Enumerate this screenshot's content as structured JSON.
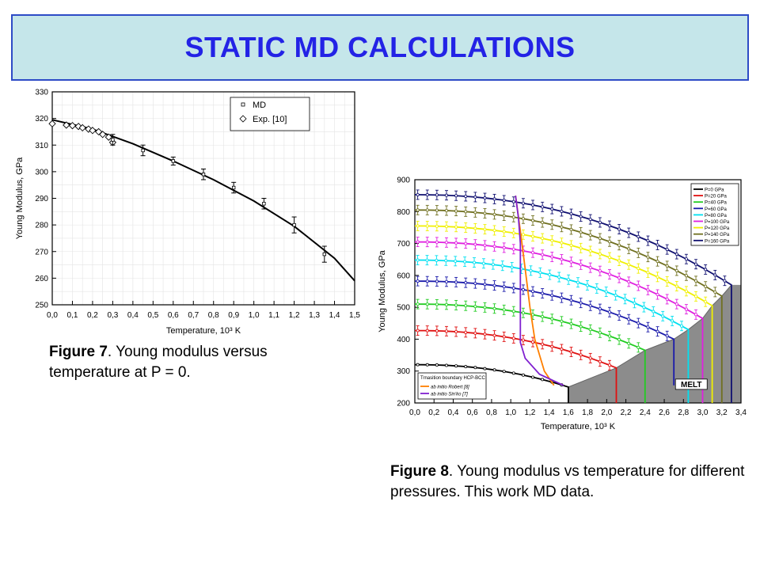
{
  "page": {
    "title": "STATIC MD CALCULATIONS",
    "title_color": "#2323e6",
    "title_bg": "#c5e6ea"
  },
  "captions": {
    "fig7_label": "Figure 7",
    "fig7_text": ". Young modulus versus temperature at P = 0.",
    "fig8_label": "Figure 8",
    "fig8_text": ". Young modulus vs temperature for different pressures. This work MD data."
  },
  "chart_data": [
    {
      "type": "line",
      "title": "",
      "xlabel": "Temperature, 10³ K",
      "ylabel": "Young Modulus, GPa",
      "xlim": [
        0.0,
        1.5
      ],
      "ylim": [
        250,
        330
      ],
      "x_ticks": [
        0.0,
        0.1,
        0.2,
        0.3,
        0.4,
        0.5,
        0.6,
        0.7,
        0.8,
        0.9,
        1.0,
        1.1,
        1.2,
        1.3,
        1.4,
        1.5
      ],
      "x_tick_labels": [
        "0,0",
        "0,1",
        "0,2",
        "0,3",
        "0,4",
        "0,5",
        "0,6",
        "0,7",
        "0,8",
        "0,9",
        "1,0",
        "1,1",
        "1,2",
        "1,3",
        "1,4",
        "1,5"
      ],
      "y_ticks": [
        250,
        260,
        270,
        280,
        290,
        300,
        310,
        320,
        330
      ],
      "grid": true,
      "legend": {
        "position": "top-right",
        "entries": [
          {
            "marker": "square",
            "label": "MD"
          },
          {
            "marker": "diamond",
            "label": "Exp. [10]"
          }
        ]
      },
      "series": [
        {
          "name": "MD",
          "x": [
            0.3,
            0.45,
            0.6,
            0.75,
            0.9,
            1.05,
            1.2,
            1.35
          ],
          "y": [
            312,
            308,
            304,
            299,
            294,
            288,
            280,
            269
          ],
          "yerr": [
            2,
            2,
            1.5,
            2,
            2,
            2,
            3,
            3
          ]
        },
        {
          "name": "Exp. [10]",
          "x": [
            0.0,
            0.07,
            0.1,
            0.13,
            0.15,
            0.18,
            0.2,
            0.23,
            0.25,
            0.28,
            0.3
          ],
          "y": [
            318,
            317.5,
            317.3,
            317,
            316.5,
            316,
            315.5,
            315,
            314,
            313,
            311
          ]
        },
        {
          "name": "fit",
          "x": [
            0.0,
            0.2,
            0.4,
            0.6,
            0.8,
            1.0,
            1.2,
            1.4,
            1.5
          ],
          "y": [
            319.5,
            316,
            310.5,
            304,
            297,
            289,
            279.5,
            267.5,
            259
          ]
        }
      ]
    },
    {
      "type": "line",
      "title": "",
      "xlabel": "Temperature, 10³ K",
      "ylabel": "Young Modulus, GPa",
      "xlim": [
        0.0,
        3.4
      ],
      "ylim": [
        200,
        900
      ],
      "x_ticks": [
        0.0,
        0.2,
        0.4,
        0.6,
        0.8,
        1.0,
        1.2,
        1.4,
        1.6,
        1.8,
        2.0,
        2.2,
        2.4,
        2.6,
        2.8,
        3.0,
        3.2,
        3.4
      ],
      "x_tick_labels": [
        "0,0",
        "0,2",
        "0,4",
        "0,6",
        "0,8",
        "1,0",
        "1,2",
        "1,4",
        "1,6",
        "1,8",
        "2,0",
        "2,2",
        "2,4",
        "2,6",
        "2,8",
        "3,0",
        "3,2",
        "3,4"
      ],
      "y_ticks": [
        200,
        300,
        400,
        500,
        600,
        700,
        800,
        900
      ],
      "grid": false,
      "legend": {
        "position": "top-right",
        "entries": [
          {
            "label": "P=0  GPa",
            "color": "#000000"
          },
          {
            "label": "P=20  GPa",
            "color": "#e01010"
          },
          {
            "label": "P=40  GPa",
            "color": "#22cc22"
          },
          {
            "label": "P=60  GPa",
            "color": "#1a1aaa"
          },
          {
            "label": "P=80  GPa",
            "color": "#00e0f0"
          },
          {
            "label": "P=100  GPa",
            "color": "#e020e0"
          },
          {
            "label": "P=120  GPa",
            "color": "#f0f000"
          },
          {
            "label": "P=140  GPa",
            "color": "#707020"
          },
          {
            "label": "P=160  GPa",
            "color": "#101070"
          }
        ]
      },
      "legend2": {
        "position": "bottom-left",
        "title": "Trnasition boundary HCP-BCC",
        "entries": [
          {
            "label": "ab initio Robert [8]",
            "color": "#ff7f00"
          },
          {
            "label": "ab initio Sin'ko [7]",
            "color": "#8020d0"
          }
        ]
      },
      "annotations": [
        {
          "text": "MELT"
        }
      ],
      "melt_line": {
        "x": [
          1.6,
          2.1,
          2.4,
          2.7,
          2.85,
          3.0,
          3.1,
          3.2,
          3.3
        ],
        "y": [
          250,
          310,
          365,
          400,
          430,
          465,
          505,
          535,
          570
        ]
      },
      "series": [
        {
          "name": "P=0  GPa",
          "color": "#000000",
          "y0": 320,
          "Tm": 1.6,
          "Em": 250,
          "vline_to": 200
        },
        {
          "name": "P=20  GPa",
          "color": "#e01010",
          "y0": 427,
          "Tm": 2.1,
          "Em": 310,
          "vline_to": 200
        },
        {
          "name": "P=40  GPa",
          "color": "#22cc22",
          "y0": 510,
          "Tm": 2.4,
          "Em": 365,
          "vline_to": 200
        },
        {
          "name": "P=60  GPa",
          "color": "#1a1aaa",
          "y0": 582,
          "Tm": 2.7,
          "Em": 400,
          "vline_to": 255
        },
        {
          "name": "P=80  GPa",
          "color": "#00e0f0",
          "y0": 648,
          "Tm": 2.85,
          "Em": 430,
          "vline_to": 200
        },
        {
          "name": "P=100  GPa",
          "color": "#e020e0",
          "y0": 705,
          "Tm": 3.0,
          "Em": 465,
          "vline_to": 200
        },
        {
          "name": "P=120  GPa",
          "color": "#f0f000",
          "y0": 755,
          "Tm": 3.1,
          "Em": 505,
          "vline_to": 200
        },
        {
          "name": "P=140  GPa",
          "color": "#707020",
          "y0": 805,
          "Tm": 3.2,
          "Em": 535,
          "vline_to": 200
        },
        {
          "name": "P=160  GPa",
          "color": "#101070",
          "y0": 853,
          "Tm": 3.3,
          "Em": 570,
          "vline_to": 200
        }
      ],
      "transition_robert": {
        "color": "#ff7f00",
        "x": [
          1.05,
          1.1,
          1.15,
          1.2,
          1.25,
          1.35,
          1.45
        ],
        "y": [
          850,
          740,
          620,
          500,
          400,
          300,
          255
        ]
      },
      "transition_sinko": {
        "color": "#8020d0",
        "x": [
          1.05,
          1.08,
          1.1,
          1.1,
          1.1,
          1.1,
          1.15,
          1.3,
          1.55
        ],
        "y": [
          850,
          780,
          700,
          600,
          500,
          390,
          340,
          290,
          255
        ]
      }
    }
  ]
}
